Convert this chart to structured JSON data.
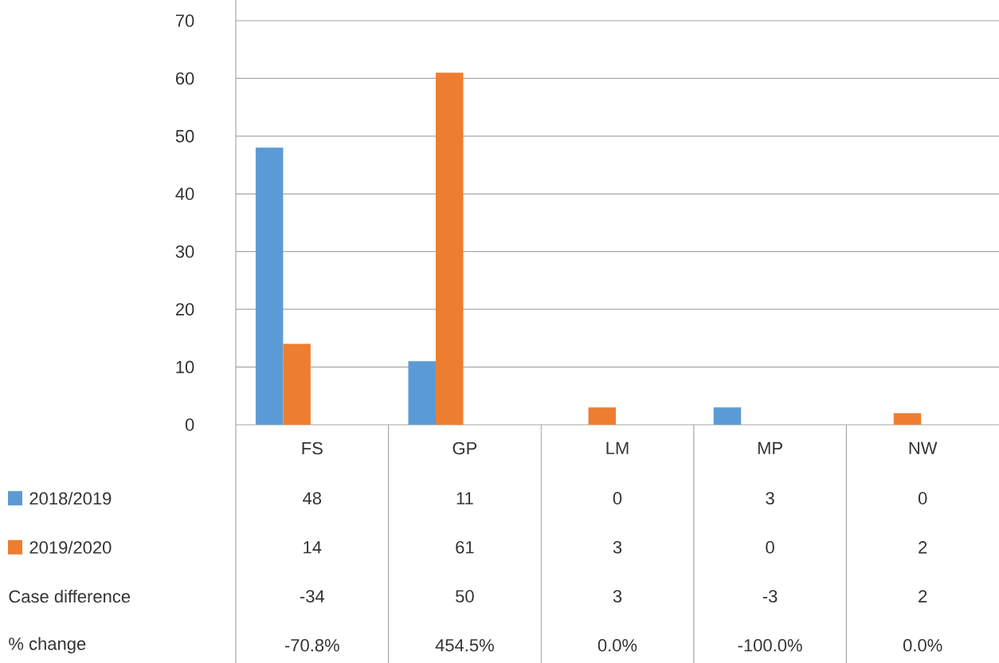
{
  "chart_data": {
    "type": "bar",
    "categories": [
      "FS",
      "GP",
      "LM",
      "MP",
      "NW"
    ],
    "series": [
      {
        "name": "2018/2019",
        "color": "#5b9bd5",
        "values": [
          48,
          11,
          0,
          3,
          0
        ]
      },
      {
        "name": "2019/2020",
        "color": "#ed7d31",
        "values": [
          14,
          61,
          3,
          0,
          2
        ]
      }
    ],
    "ylim": [
      0,
      70
    ],
    "yticks": [
      0,
      10,
      20,
      30,
      40,
      50,
      60,
      70
    ],
    "grid": "y",
    "legend": "bottom left",
    "data_labels": true,
    "annotations": [
      "Case difference",
      "-34",
      "50",
      "3",
      "-3",
      "2",
      "% change",
      "-70.8%",
      "454.5%",
      "0.0%",
      "-100.0%",
      "0.0%"
    ]
  }
}
